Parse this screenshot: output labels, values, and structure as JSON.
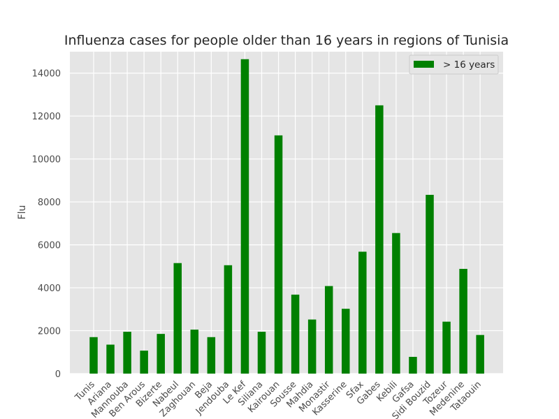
{
  "chart_data": {
    "type": "bar",
    "title": "Influenza cases for people older than 16 years in regions of Tunisia",
    "xlabel": "",
    "ylabel": "Flu",
    "ylim": [
      0,
      15000
    ],
    "yticks": [
      0,
      2000,
      4000,
      6000,
      8000,
      10000,
      12000,
      14000
    ],
    "grid": true,
    "legend_position": "top-right",
    "bar_color": "#008000",
    "background_color": "#e5e5e5",
    "categories": [
      "Tunis",
      "Ariana",
      "Mannouba",
      "Ben Arous",
      "Bizerte",
      "Nabeul",
      "Zaghouan",
      "Beja",
      "Jendouba",
      "Le Kef",
      "Siliana",
      "Kairouan",
      "Sousse",
      "Mahdia",
      "Monastir",
      "Kasserine",
      "Sfax",
      "Gabes",
      "Kebili",
      "Gafsa",
      "Sidi Bouzid",
      "Tozeur",
      "Medenine",
      "Tataouin"
    ],
    "series": [
      {
        "name": "> 16 years",
        "values": [
          1700,
          1350,
          1950,
          1070,
          1850,
          5150,
          2050,
          1700,
          5050,
          14650,
          1950,
          11100,
          3680,
          2520,
          4080,
          3020,
          5680,
          12500,
          6550,
          780,
          8330,
          2420,
          4880,
          1800
        ]
      }
    ]
  }
}
